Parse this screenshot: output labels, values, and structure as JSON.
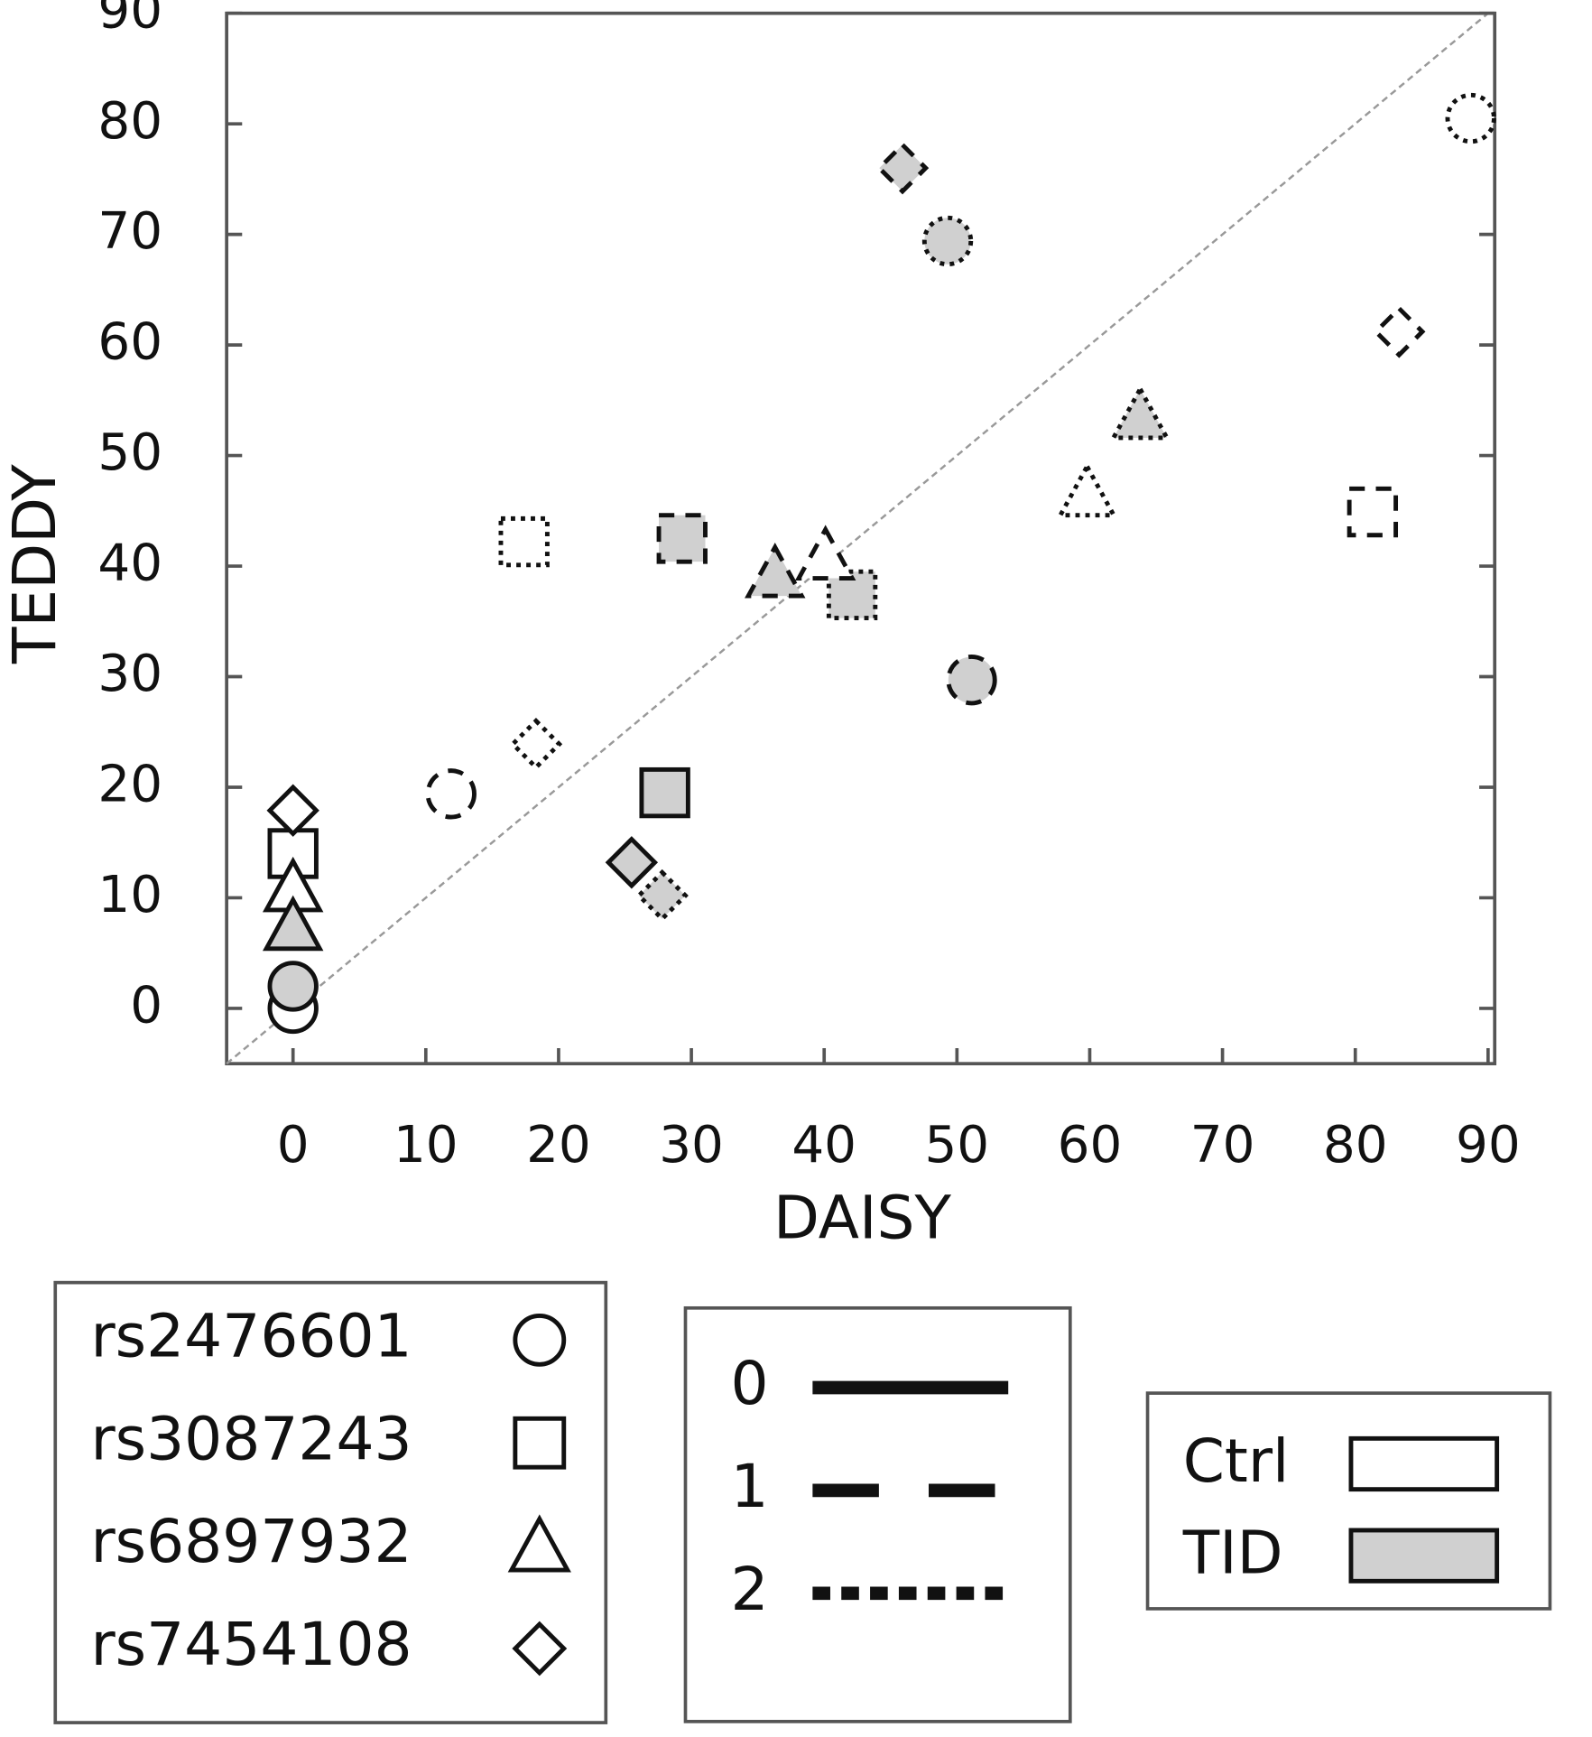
{
  "chart_data": {
    "type": "scatter",
    "xlabel": "DAISY",
    "ylabel": "TEDDY",
    "xlim": [
      -5,
      90.5
    ],
    "ylim": [
      -5,
      90
    ],
    "xticks": [
      0,
      10,
      20,
      30,
      40,
      50,
      60,
      70,
      80,
      90
    ],
    "yticks": [
      0,
      10,
      20,
      30,
      40,
      50,
      60,
      70,
      80,
      90
    ],
    "grid": false,
    "series": [
      {
        "name": "rs2476601",
        "shape": "circle",
        "x": [
          0,
          0,
          11.9,
          51.1,
          49.3,
          88.7
        ],
        "values": [
          0,
          2,
          19.4,
          29.7,
          69.4,
          80.5
        ],
        "genotype": [
          "0",
          "0",
          "1",
          "1",
          "2",
          "2"
        ],
        "group": [
          "Ctrl",
          "TID",
          "Ctrl",
          "TID",
          "TID",
          "Ctrl"
        ]
      },
      {
        "name": "rs3087243",
        "shape": "square",
        "x": [
          0,
          28.0,
          17.4,
          29.3,
          42.1,
          81.3
        ],
        "values": [
          14,
          19.5,
          42.2,
          42.5,
          37.4,
          44.9
        ],
        "genotype": [
          "0",
          "0",
          "2",
          "1",
          "2",
          "1"
        ],
        "group": [
          "Ctrl",
          "TID",
          "Ctrl",
          "TID",
          "TID",
          "Ctrl"
        ]
      },
      {
        "name": "rs6897932",
        "shape": "triangle",
        "x": [
          0,
          0,
          36.3,
          40.1,
          59.8,
          63.8
        ],
        "values": [
          11,
          7.5,
          39.4,
          41,
          46.7,
          53.7
        ],
        "genotype": [
          "0",
          "0",
          "1",
          "1",
          "2",
          "2"
        ],
        "group": [
          "Ctrl",
          "TID",
          "TID",
          "Ctrl",
          "Ctrl",
          "TID"
        ]
      },
      {
        "name": "rs7454108",
        "shape": "diamond",
        "x": [
          0,
          25.5,
          27.8,
          18.3,
          45.9,
          83.3
        ],
        "values": [
          17.9,
          13.2,
          10.2,
          23.9,
          76,
          61.2
        ],
        "genotype": [
          "0",
          "0",
          "2",
          "2",
          "1",
          "1"
        ],
        "group": [
          "Ctrl",
          "TID",
          "TID",
          "Ctrl",
          "TID",
          "Ctrl"
        ]
      }
    ],
    "genotypes": [
      "0",
      "1",
      "2"
    ],
    "groups": [
      "Ctrl",
      "TID"
    ],
    "group_colors": [
      "#ffffff",
      "#d0d0d0"
    ]
  }
}
